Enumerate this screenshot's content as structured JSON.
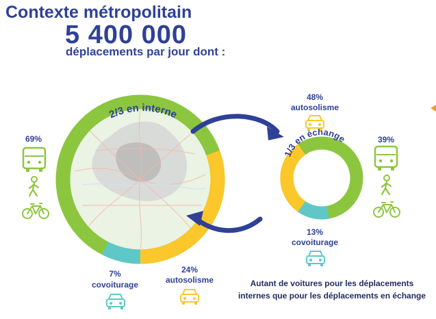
{
  "header": {
    "title": "Contexte métropolitain",
    "big_number": "5 400 000",
    "subtitle": "déplacements par jour dont :"
  },
  "ring_internal": {
    "label": "2/3 en interne",
    "left_modes_pct": "69%",
    "covoiturage_pct": "7%",
    "covoiturage_label": "covoiturage",
    "autosolisme_pct": "24%",
    "autosolisme_label": "autosolisme"
  },
  "ring_exchange": {
    "label": "1/3 en échange",
    "autosolisme_pct": "48%",
    "autosolisme_label": "autosolisme",
    "covoiturage_pct": "13%",
    "covoiturage_label": "covoiturage",
    "right_modes_pct": "39%"
  },
  "caption_line1": "Autant de voitures pour les déplacements",
  "caption_line2": "internes que pour les déplacements en échange",
  "colors": {
    "green": "#8cc63f",
    "yellow": "#fbc72a",
    "teal": "#5ec8c8",
    "navy": "#2f4196",
    "map_fill": "#eaf3e4",
    "orange": "#f29a3a"
  },
  "icons": [
    "bus-icon",
    "pedestrian-icon",
    "bicycle-icon",
    "car-icon"
  ]
}
